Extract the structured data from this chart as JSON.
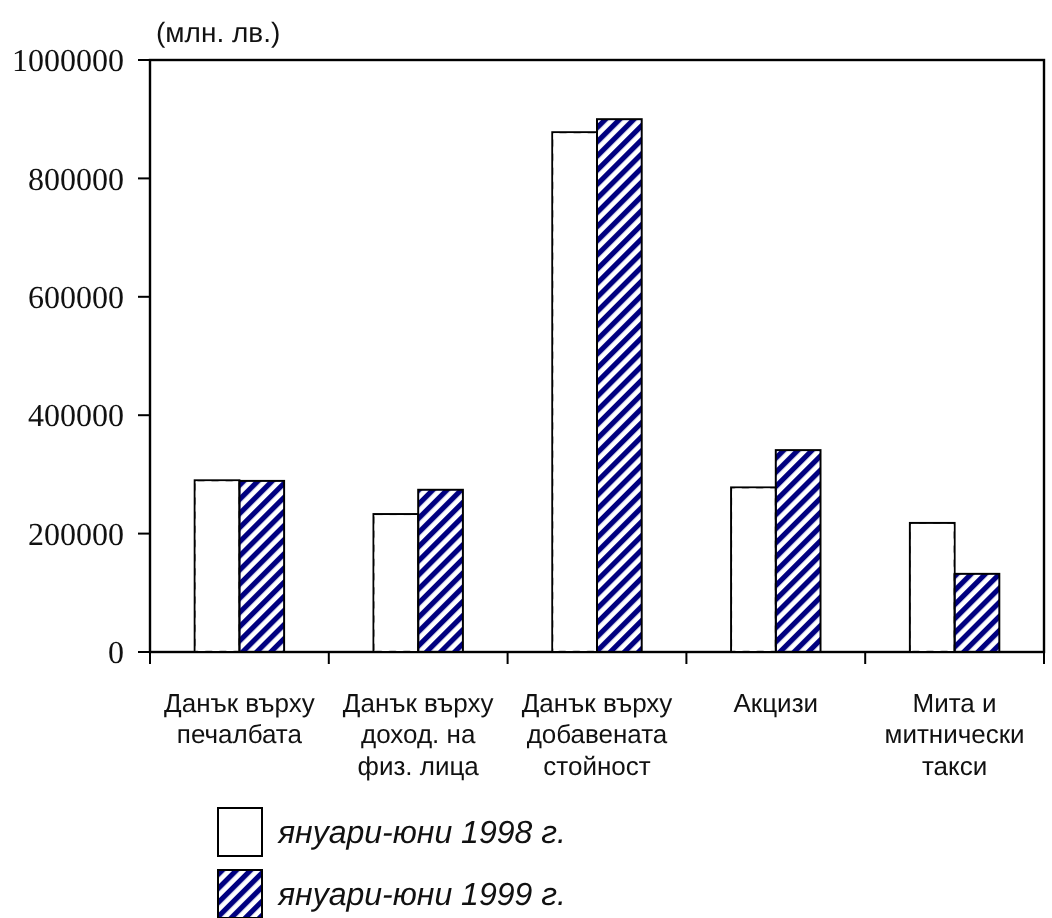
{
  "chart_data": {
    "type": "bar",
    "ylabel": "(млн. лв.)",
    "categories": [
      "Данък върху\nпечалбата",
      "Данък върху\nдоход. на\nфиз. лица",
      "Данък върху\nдобавената\nстойност",
      "Акцизи",
      "Мита и\nмитнически\nтакси"
    ],
    "series": [
      {
        "name": "януари-юни 1998 г.",
        "color": "#ffffff",
        "values": [
          290000,
          233000,
          878000,
          278000,
          218000
        ]
      },
      {
        "name": "януари-юни 1999 г.",
        "color": "#000080",
        "values": [
          289000,
          274000,
          900000,
          341000,
          132000
        ]
      }
    ],
    "ylim": [
      0,
      1000000
    ],
    "yticks": [
      0,
      200000,
      400000,
      600000,
      800000,
      1000000
    ],
    "legend": "bottom"
  }
}
